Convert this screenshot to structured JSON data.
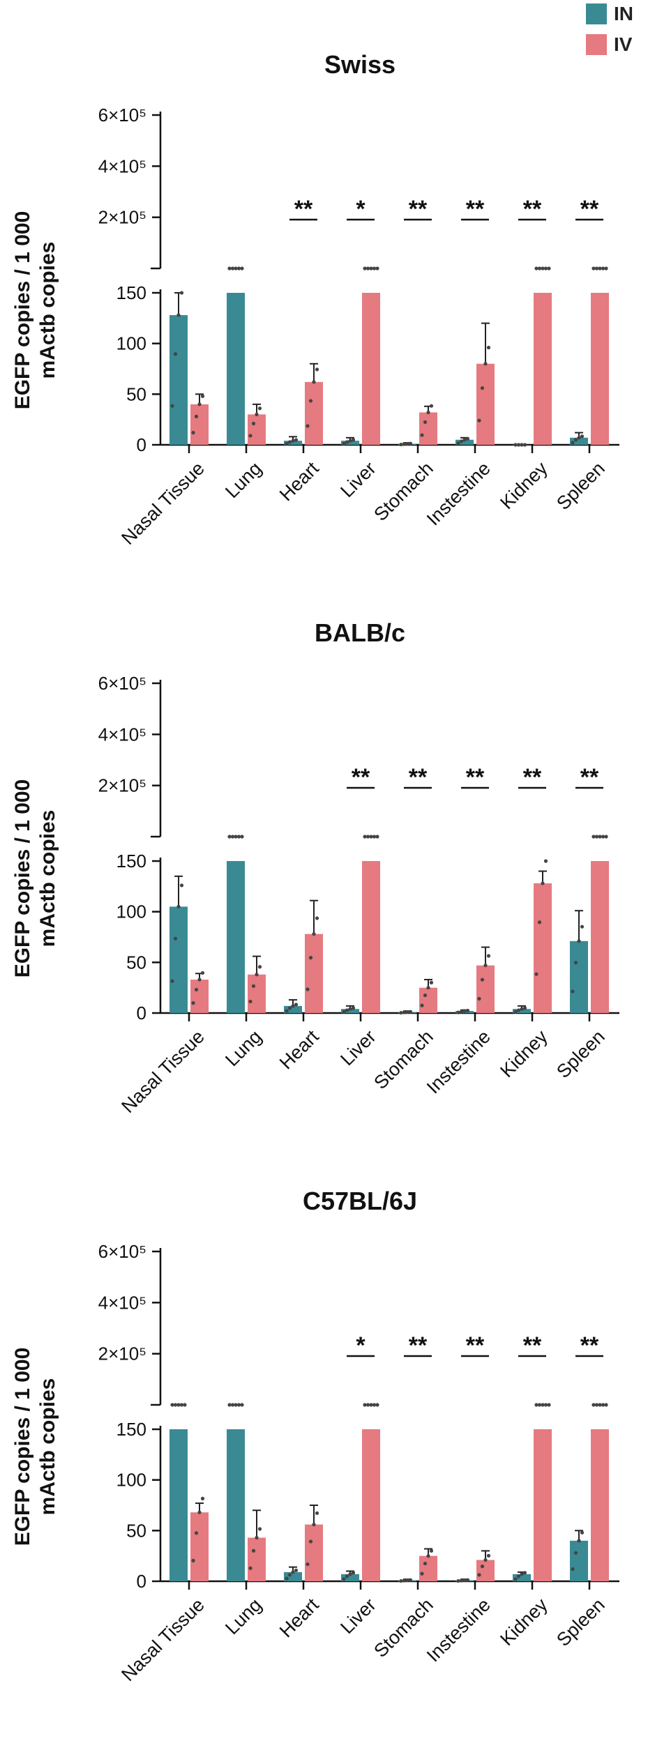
{
  "colors": {
    "IN": "#3a8a94",
    "IV": "#e57a80",
    "dot": "#444444",
    "axis": "#111111"
  },
  "legend": {
    "in_label": "IN",
    "iv_label": "IV"
  },
  "chart_data": [
    {
      "type": "bar",
      "title": "Swiss",
      "ylabel_line1": "EGFP copies / 1 000",
      "ylabel_line2": "mActb copies",
      "y_lower_ticks": [
        "0",
        "50",
        "100",
        "150"
      ],
      "y_upper_ticks": [
        "2×10⁵",
        "4×10⁵",
        "6×10⁵"
      ],
      "ylim_lower": [
        0,
        150
      ],
      "ylim_upper": [
        0,
        600000
      ],
      "categories": [
        "Nasal Tissue",
        "Lung",
        "Heart",
        "Liver",
        "Stomach",
        "Instestine",
        "Kidney",
        "Spleen"
      ],
      "series": [
        {
          "name": "IN",
          "values": [
            128,
            150,
            4,
            4,
            1,
            5,
            0,
            7
          ],
          "errors": [
            22,
            0,
            4,
            3,
            1,
            2,
            0,
            5
          ]
        },
        {
          "name": "IV",
          "values": [
            40,
            30,
            62,
            150,
            32,
            80,
            150,
            150
          ],
          "errors": [
            10,
            10,
            18,
            0,
            6,
            40,
            0,
            0
          ]
        }
      ],
      "significance": [
        "",
        "",
        "**",
        "*",
        "**",
        "**",
        "**",
        "**"
      ]
    },
    {
      "type": "bar",
      "title": "BALB/c",
      "ylabel_line1": "EGFP copies / 1 000",
      "ylabel_line2": "mActb copies",
      "y_lower_ticks": [
        "0",
        "50",
        "100",
        "150"
      ],
      "y_upper_ticks": [
        "2×10⁵",
        "4×10⁵",
        "6×10⁵"
      ],
      "ylim_lower": [
        0,
        150
      ],
      "ylim_upper": [
        0,
        600000
      ],
      "categories": [
        "Nasal Tissue",
        "Lung",
        "Heart",
        "Liver",
        "Stomach",
        "Instestine",
        "Kidney",
        "Spleen"
      ],
      "series": [
        {
          "name": "IN",
          "values": [
            105,
            150,
            7,
            4,
            1,
            2,
            4,
            71
          ],
          "errors": [
            30,
            0,
            6,
            3,
            1,
            1,
            3,
            30
          ]
        },
        {
          "name": "IV",
          "values": [
            33,
            38,
            78,
            150,
            25,
            47,
            128,
            150
          ],
          "errors": [
            6,
            18,
            33,
            0,
            8,
            18,
            12,
            0
          ]
        }
      ],
      "significance": [
        "",
        "",
        "",
        "**",
        "**",
        "**",
        "**",
        "**"
      ]
    },
    {
      "type": "bar",
      "title": "C57BL/6J",
      "ylabel_line1": "EGFP copies / 1 000",
      "ylabel_line2": "mActb copies",
      "y_lower_ticks": [
        "0",
        "50",
        "100",
        "150"
      ],
      "y_upper_ticks": [
        "2×10⁵",
        "4×10⁵",
        "6×10⁵"
      ],
      "ylim_lower": [
        0,
        150
      ],
      "ylim_upper": [
        0,
        600000
      ],
      "categories": [
        "Nasal Tissue",
        "Lung",
        "Heart",
        "Liver",
        "Stomach",
        "Instestine",
        "Kidney",
        "Spleen"
      ],
      "series": [
        {
          "name": "IN",
          "values": [
            150,
            150,
            9,
            7,
            1,
            1,
            7,
            40
          ],
          "errors": [
            0,
            0,
            5,
            3,
            1,
            1,
            2,
            10
          ]
        },
        {
          "name": "IV",
          "values": [
            68,
            43,
            56,
            150,
            25,
            21,
            150,
            150
          ],
          "errors": [
            9,
            27,
            19,
            0,
            7,
            9,
            0,
            0
          ]
        }
      ],
      "significance": [
        "",
        "",
        "",
        "*",
        "**",
        "**",
        "**",
        "**"
      ]
    }
  ]
}
